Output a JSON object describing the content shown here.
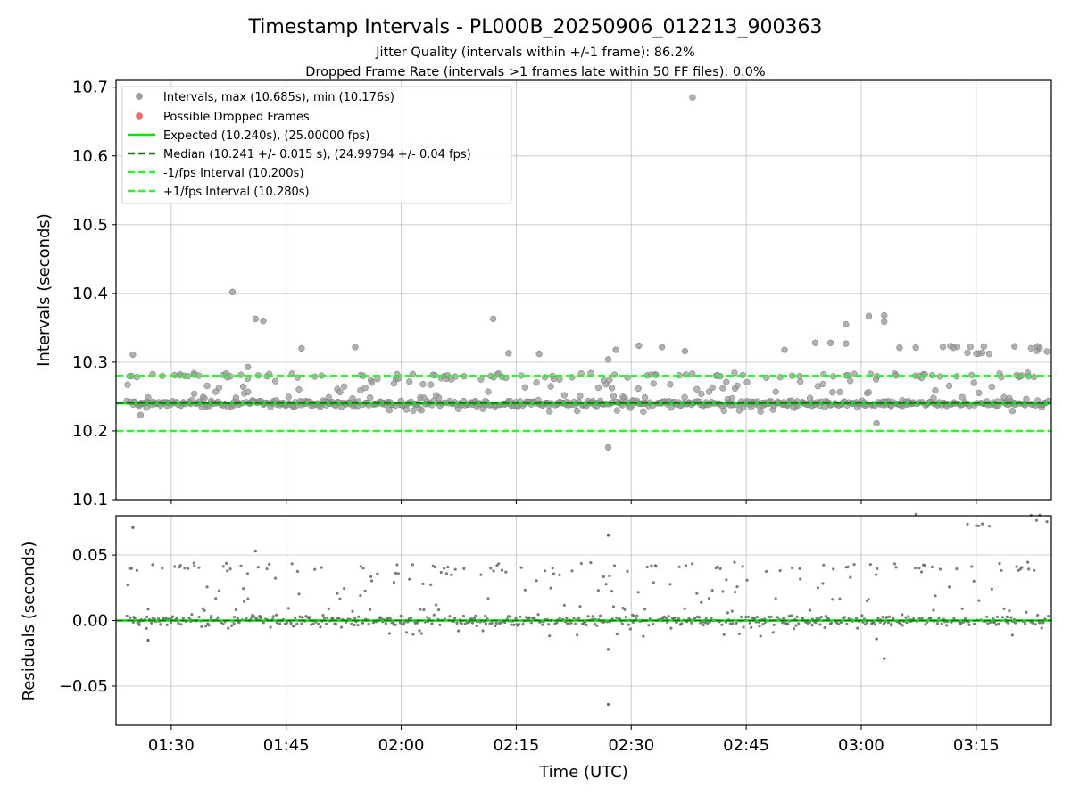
{
  "figure": {
    "title": "Timestamp Intervals - PL000B_20250906_012213_900363",
    "subtitle1": "Jitter Quality (intervals within +/-1 frame): 86.2%",
    "subtitle2": "Dropped Frame Rate (intervals >1 frames late within 50 FF files): 0.0%"
  },
  "chart_data": [
    {
      "type": "scatter",
      "ylabel": "Intervals (seconds)",
      "xlim_minutes": [
        82.8,
        204.8
      ],
      "ylim": [
        10.1,
        10.71
      ],
      "yticks": [
        10.1,
        10.2,
        10.3,
        10.4,
        10.5,
        10.6,
        10.7
      ],
      "ytick_labels": [
        "10.1",
        "10.2",
        "10.3",
        "10.4",
        "10.5",
        "10.6",
        "10.7"
      ],
      "grid": true,
      "legend_position": "upper left",
      "legend": [
        {
          "label": "Intervals, max (10.685s), min (10.176s)",
          "kind": "marker",
          "color": "#a0a0a0"
        },
        {
          "label": "Possible Dropped Frames",
          "kind": "marker",
          "color": "#ff6b6b"
        },
        {
          "label": "Expected (10.240s), (25.00000 fps)",
          "kind": "solid",
          "color": "#00e400"
        },
        {
          "label": "Median (10.241 +/- 0.015 s), (24.99794 +/- 0.04 fps)",
          "kind": "dashed",
          "color": "#1a6e1a"
        },
        {
          "label": "-1/fps Interval (10.200s)",
          "kind": "dashed",
          "color": "#22ff22"
        },
        {
          "label": "+1/fps Interval (10.280s)",
          "kind": "dashed",
          "color": "#22ff22"
        }
      ],
      "reference_lines": {
        "expected": 10.24,
        "median": 10.241,
        "minus_one_frame": 10.2,
        "plus_one_frame": 10.28
      },
      "outliers": [
        {
          "t": "01:25",
          "y": 10.311
        },
        {
          "t": "01:26",
          "y": 10.223
        },
        {
          "t": "01:33",
          "y": 10.254
        },
        {
          "t": "01:38",
          "y": 10.402
        },
        {
          "t": "01:40",
          "y": 10.293
        },
        {
          "t": "01:41",
          "y": 10.363
        },
        {
          "t": "01:42",
          "y": 10.36
        },
        {
          "t": "01:47",
          "y": 10.32
        },
        {
          "t": "01:54",
          "y": 10.322
        },
        {
          "t": "02:12",
          "y": 10.363
        },
        {
          "t": "02:14",
          "y": 10.313
        },
        {
          "t": "02:18",
          "y": 10.312
        },
        {
          "t": "02:27",
          "y": 10.176
        },
        {
          "t": "02:27",
          "y": 10.304
        },
        {
          "t": "02:28",
          "y": 10.318
        },
        {
          "t": "02:31",
          "y": 10.324
        },
        {
          "t": "02:34",
          "y": 10.322
        },
        {
          "t": "02:37",
          "y": 10.316
        },
        {
          "t": "02:38",
          "y": 10.685
        },
        {
          "t": "02:50",
          "y": 10.318
        },
        {
          "t": "02:54",
          "y": 10.328
        },
        {
          "t": "02:56",
          "y": 10.328
        },
        {
          "t": "02:58",
          "y": 10.355
        },
        {
          "t": "02:58",
          "y": 10.327
        },
        {
          "t": "03:01",
          "y": 10.367
        },
        {
          "t": "03:02",
          "y": 10.211
        },
        {
          "t": "03:03",
          "y": 10.368
        },
        {
          "t": "03:03",
          "y": 10.359
        },
        {
          "t": "03:05",
          "y": 10.321
        },
        {
          "t": "03:12",
          "y": 10.321
        },
        {
          "t": "03:16",
          "y": 10.323
        },
        {
          "t": "03:20",
          "y": 10.323
        },
        {
          "t": "03:23",
          "y": 10.323
        }
      ]
    },
    {
      "type": "scatter",
      "ylabel": "Residuals (seconds)",
      "xlabel": "Time (UTC)",
      "xlim_minutes": [
        82.8,
        204.8
      ],
      "ylim": [
        -0.08,
        0.08
      ],
      "yticks": [
        -0.05,
        0.0,
        0.05
      ],
      "ytick_labels": [
        "−0.05",
        "0.00",
        "0.05"
      ],
      "xticks_minutes": [
        90,
        105,
        120,
        135,
        150,
        165,
        180,
        195
      ],
      "xtick_labels": [
        "01:30",
        "01:45",
        "02:00",
        "02:15",
        "02:30",
        "02:45",
        "03:00",
        "03:15"
      ],
      "grid": true,
      "reference_line": 0.0,
      "outliers": [
        {
          "t": "01:25",
          "y": 0.071
        },
        {
          "t": "01:27",
          "y": -0.015
        },
        {
          "t": "01:41",
          "y": 0.053
        },
        {
          "t": "02:27",
          "y": -0.064
        },
        {
          "t": "02:27",
          "y": -0.022
        },
        {
          "t": "02:27",
          "y": 0.065
        },
        {
          "t": "03:03",
          "y": -0.029
        },
        {
          "t": "03:02",
          "y": -0.014
        }
      ]
    }
  ]
}
